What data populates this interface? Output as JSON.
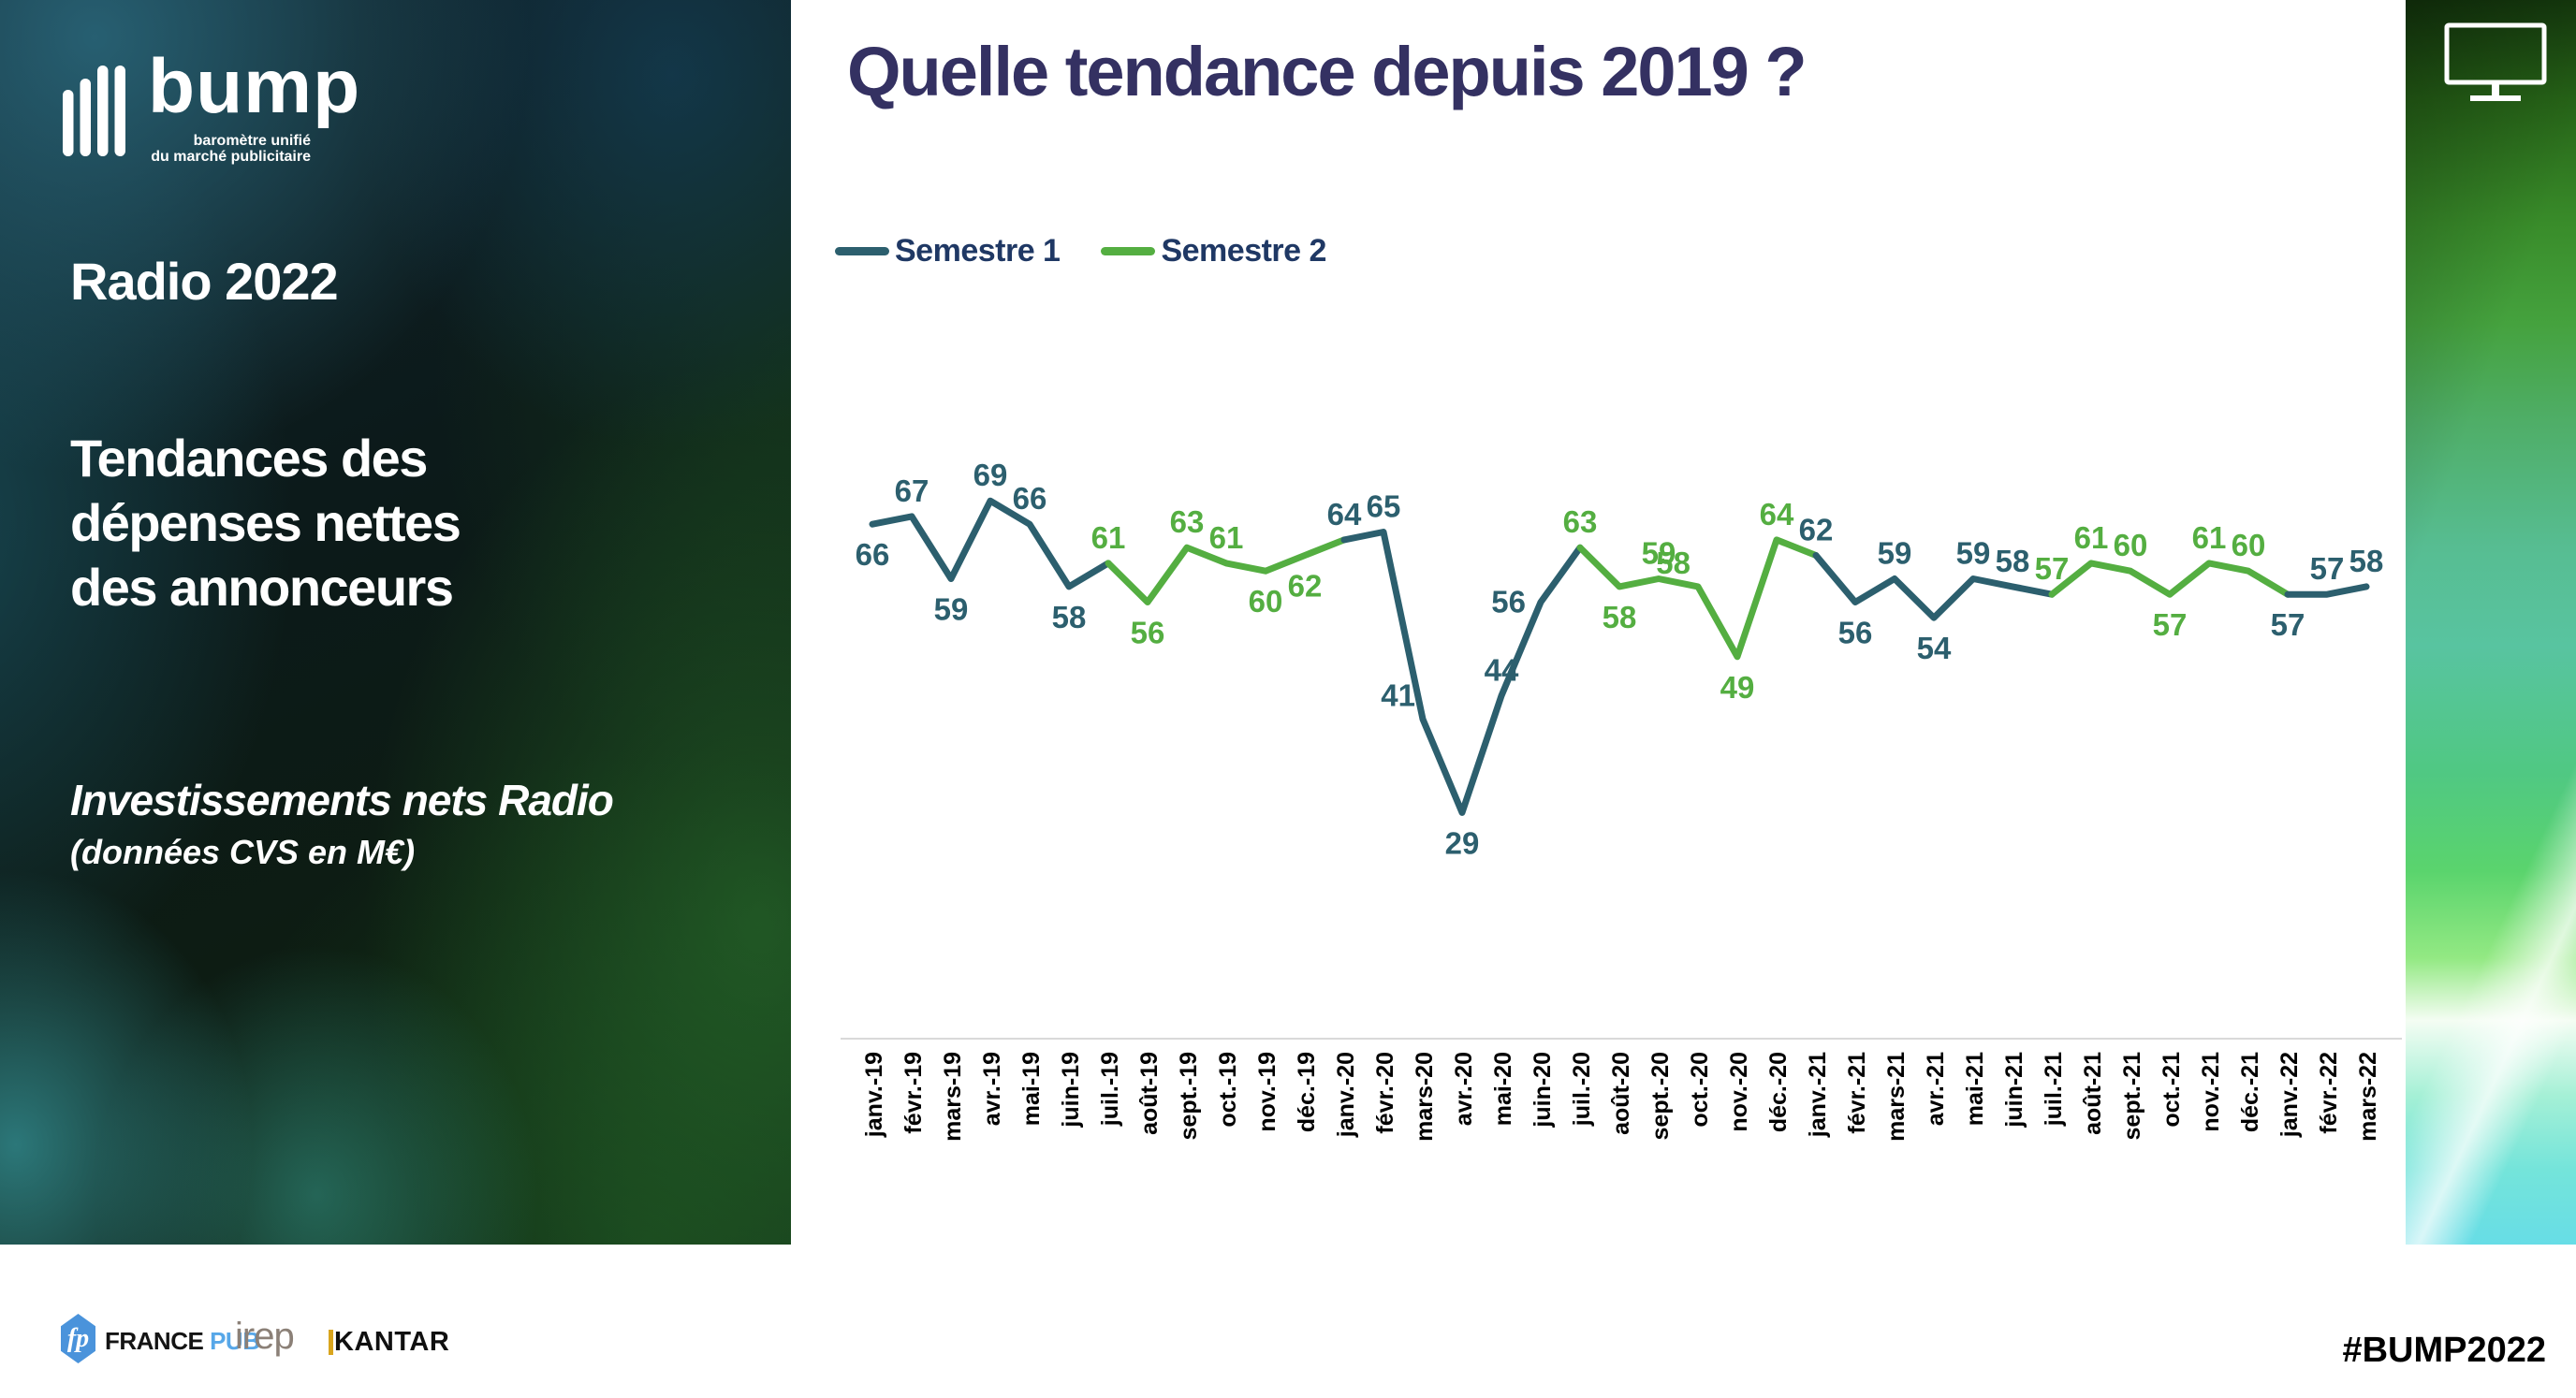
{
  "main": {
    "title": "Quelle tendance depuis 2019 ?"
  },
  "sidebar": {
    "logo": {
      "name": "bump",
      "tagline1": "baromètre unifié",
      "tagline2": "du marché publicitaire"
    },
    "heading": "Radio 2022",
    "subtitle_lines": [
      "Tendances des",
      "dépenses nettes",
      "des annonceurs"
    ],
    "note1": "Investissements nets Radio",
    "note2": "(données CVS en M€)"
  },
  "footer": {
    "france_pub": {
      "fp": "fp",
      "france": "FRANCE",
      "pub": "PUB"
    },
    "irep": "irep",
    "kantar": "KANTAR",
    "hashtag": "#BUMP2022"
  },
  "chart_data": {
    "type": "line",
    "title": "Quelle tendance depuis 2019 ?",
    "xlabel": "",
    "ylabel": "Investissements nets Radio (données CVS en M€)",
    "grid": false,
    "legend_position": "top-left",
    "axis_color": "#d9d9d9",
    "tick_color": "#000000",
    "ylim": [
      0,
      75
    ],
    "x": [
      "janv.-19",
      "févr.-19",
      "mars-19",
      "avr.-19",
      "mai-19",
      "juin-19",
      "juil.-19",
      "août-19",
      "sept.-19",
      "oct.-19",
      "nov.-19",
      "déc.-19",
      "janv.-20",
      "févr.-20",
      "mars-20",
      "avr.-20",
      "mai-20",
      "juin-20",
      "juil.-20",
      "août-20",
      "sept.-20",
      "oct.-20",
      "nov.-20",
      "déc.-20",
      "janv.-21",
      "févr.-21",
      "mars-21",
      "avr.-21",
      "mai-21",
      "juin-21",
      "juil.-21",
      "août-21",
      "sept.-21",
      "oct.-21",
      "nov.-21",
      "déc.-21",
      "janv.-22",
      "févr.-22",
      "mars-22"
    ],
    "values": [
      66,
      67,
      59,
      69,
      66,
      58,
      61,
      56,
      63,
      61,
      60,
      62,
      64,
      65,
      41,
      29,
      44,
      56,
      63,
      58,
      59,
      58,
      49,
      64,
      62,
      56,
      59,
      54,
      59,
      58,
      57,
      61,
      60,
      57,
      61,
      60,
      57,
      57,
      58
    ],
    "point_series": [
      1,
      1,
      1,
      1,
      1,
      1,
      2,
      2,
      2,
      2,
      2,
      2,
      1,
      1,
      1,
      1,
      1,
      1,
      2,
      2,
      2,
      2,
      2,
      2,
      1,
      1,
      1,
      1,
      1,
      1,
      2,
      2,
      2,
      2,
      2,
      2,
      1,
      1,
      1
    ],
    "label_positions": [
      "below",
      "above",
      "below",
      "above",
      "above",
      "below",
      "above",
      "below",
      "above",
      "above",
      "below",
      "below",
      "above",
      "above",
      "upleft",
      "below",
      "above",
      "left",
      "above",
      "below",
      "above",
      "upleft",
      "below",
      "above",
      "above",
      "below",
      "above",
      "below",
      "above",
      "above",
      "above",
      "above",
      "above",
      "below",
      "above",
      "above",
      "below",
      "above",
      "above"
    ],
    "series": [
      {
        "name": "Semestre 1",
        "color": "#2c5f6e",
        "months": "janvier–juin"
      },
      {
        "name": "Semestre 2",
        "color": "#54ae41",
        "months": "juillet–décembre"
      }
    ]
  }
}
